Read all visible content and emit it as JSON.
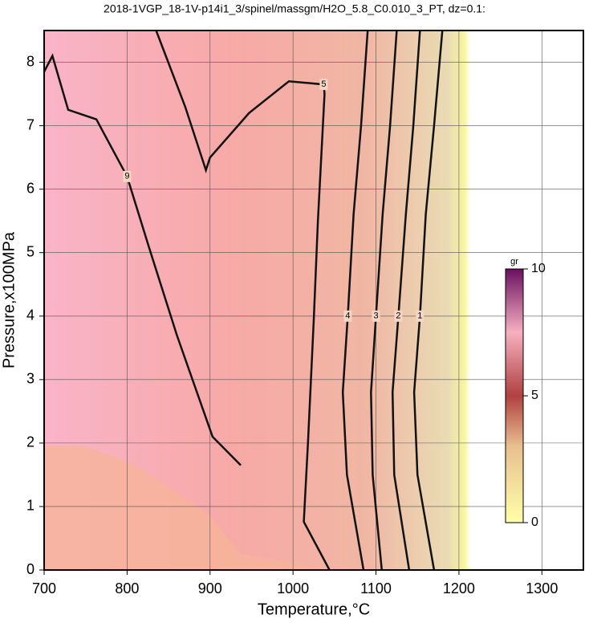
{
  "chart_data": {
    "type": "contour",
    "title": "2018-1VGP_18-1V-p14i1_3/spinel/massgm/H2O_5.8_C0.010_3_PT, dz=0.1:",
    "x_label": "Temperature,°C",
    "y_label": "Pressure,x100MPa",
    "xlim": [
      700,
      1350
    ],
    "ylim": [
      0,
      8.5
    ],
    "xticks": [
      700,
      800,
      900,
      1000,
      1100,
      1200,
      1300
    ],
    "yticks": [
      0,
      1,
      2,
      3,
      4,
      5,
      6,
      7,
      8
    ],
    "grid": true,
    "color": "#111111",
    "contours": [
      {
        "level": 1,
        "x": [
          1170,
          1150,
          1146,
          1153,
          1160,
          1170,
          1180
        ],
        "y": [
          0,
          1.5,
          2.8,
          4,
          5.6,
          7,
          8.5
        ]
      },
      {
        "level": 2,
        "x": [
          1140,
          1122,
          1120,
          1127,
          1136,
          1145,
          1153
        ],
        "y": [
          0,
          1.5,
          2.8,
          4,
          5.6,
          7,
          8.5
        ]
      },
      {
        "level": 3,
        "x": [
          1107,
          1096,
          1094,
          1100,
          1108,
          1117,
          1125
        ],
        "y": [
          0,
          1.5,
          2.8,
          4,
          5.6,
          7,
          8.5
        ]
      },
      {
        "level": 4,
        "x": [
          1085,
          1065,
          1060,
          1066,
          1073,
          1082,
          1090
        ],
        "y": [
          0,
          1.5,
          2.8,
          4,
          5.6,
          7,
          8.5
        ]
      },
      {
        "level": 5,
        "x": [
          1044,
          1013,
          1018,
          1025,
          1030,
          1036,
          1038,
          1037,
          995,
          947,
          900,
          895,
          870,
          835
        ],
        "y": [
          0,
          0.76,
          2,
          3.94,
          5.5,
          7,
          7.5,
          7.65,
          7.7,
          7.2,
          6.5,
          6.3,
          7.3,
          8.5
        ]
      },
      {
        "level": 9,
        "x": [
          700,
          710,
          729,
          763,
          800,
          826,
          860,
          903,
          937
        ],
        "y": [
          7.85,
          8.1,
          7.25,
          7.1,
          6.2,
          5.1,
          3.7,
          2.1,
          1.65
        ]
      }
    ],
    "colorbar": {
      "label": "gr",
      "lim": [
        0,
        10
      ],
      "ticks": [
        0,
        5,
        10
      ]
    }
  }
}
